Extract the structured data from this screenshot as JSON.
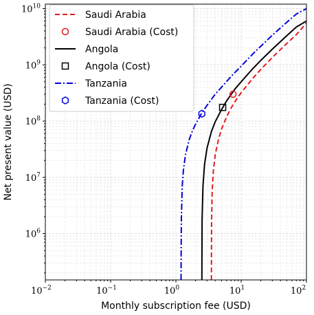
{
  "chart_data": {
    "type": "line",
    "title": "",
    "xlabel": "Monthly subscription fee (USD)",
    "ylabel": "Net present value (USD)",
    "x_scale": "log",
    "y_scale": "log",
    "xlim": [
      0.01,
      100
    ],
    "ylim": [
      150000,
      12000000000
    ],
    "grid": true,
    "legend_position": "upper-left",
    "x_ticks": [
      {
        "base": "10",
        "exp": "−2",
        "value": 0.01
      },
      {
        "base": "10",
        "exp": "−1",
        "value": 0.1
      },
      {
        "base": "10",
        "exp": "0",
        "value": 1
      },
      {
        "base": "10",
        "exp": "1",
        "value": 10
      },
      {
        "base": "10",
        "exp": "2",
        "value": 100
      }
    ],
    "y_ticks": [
      {
        "base": "10",
        "exp": "6",
        "value": 1000000
      },
      {
        "base": "10",
        "exp": "7",
        "value": 10000000
      },
      {
        "base": "10",
        "exp": "8",
        "value": 100000000
      },
      {
        "base": "10",
        "exp": "9",
        "value": 1000000000
      },
      {
        "base": "10",
        "exp": "10",
        "value": 10000000000
      }
    ],
    "series": [
      {
        "name": "Saudi Arabia",
        "color": "#e41a1c",
        "style": "dashed",
        "x": [
          3.5,
          3.52,
          3.6,
          3.75,
          4.0,
          4.5,
          5.0,
          6.0,
          7.0,
          8.0,
          10,
          15,
          20,
          30,
          50,
          70,
          100
        ],
        "y": [
          150000,
          1500000,
          5600000,
          13000000,
          25000000,
          48000000,
          72000000,
          120000000,
          170000000,
          220000000,
          320000000,
          570000000,
          830000000,
          1350000000,
          2400000000,
          3450000000,
          5500000000
        ]
      },
      {
        "name": "Angola",
        "color": "#000000",
        "style": "solid",
        "x": [
          2.5,
          2.52,
          2.6,
          2.75,
          3.0,
          3.5,
          4.0,
          5.0,
          6.0,
          8.0,
          10,
          15,
          20,
          30,
          50,
          70,
          100
        ],
        "y": [
          150000,
          1700000,
          7000000,
          17000000,
          33000000,
          65000000,
          97000000,
          160000000,
          230000000,
          370000000,
          500000000,
          850000000,
          1200000000,
          1900000000,
          3300000000,
          4700000000,
          6000000000
        ]
      },
      {
        "name": "Tanzania",
        "color": "#0000dd",
        "style": "dashdot",
        "x": [
          1.2,
          1.21,
          1.25,
          1.3,
          1.4,
          1.6,
          1.8,
          2.0,
          2.5,
          3.0,
          4.0,
          5.0,
          7.0,
          10,
          15,
          20,
          30,
          50,
          70,
          100
        ],
        "y": [
          150000,
          1700000,
          7000000,
          13000000,
          25000000,
          47000000,
          68000000,
          88000000,
          140000000,
          190000000,
          300000000,
          400000000,
          620000000,
          950000000,
          1550000000,
          2150000000,
          3350000000,
          5700000000,
          8000000000,
          10000000000
        ]
      }
    ],
    "cost_points": [
      {
        "name": "Saudi Arabia (Cost)",
        "color": "#e41a1c",
        "marker": "circle",
        "x": 7.5,
        "y": 300000000
      },
      {
        "name": "Angola (Cost)",
        "color": "#000000",
        "marker": "square",
        "x": 5.2,
        "y": 175000000
      },
      {
        "name": "Tanzania (Cost)",
        "color": "#0000dd",
        "marker": "hexagon",
        "x": 2.5,
        "y": 135000000
      }
    ],
    "legend": [
      {
        "label": "Saudi Arabia",
        "kind": "line",
        "ref": 0
      },
      {
        "label": "Saudi Arabia (Cost)",
        "kind": "marker",
        "ref": 0
      },
      {
        "label": "Angola",
        "kind": "line",
        "ref": 1
      },
      {
        "label": "Angola (Cost)",
        "kind": "marker",
        "ref": 1
      },
      {
        "label": "Tanzania",
        "kind": "line",
        "ref": 2
      },
      {
        "label": "Tanzania (Cost)",
        "kind": "marker",
        "ref": 2
      }
    ]
  }
}
